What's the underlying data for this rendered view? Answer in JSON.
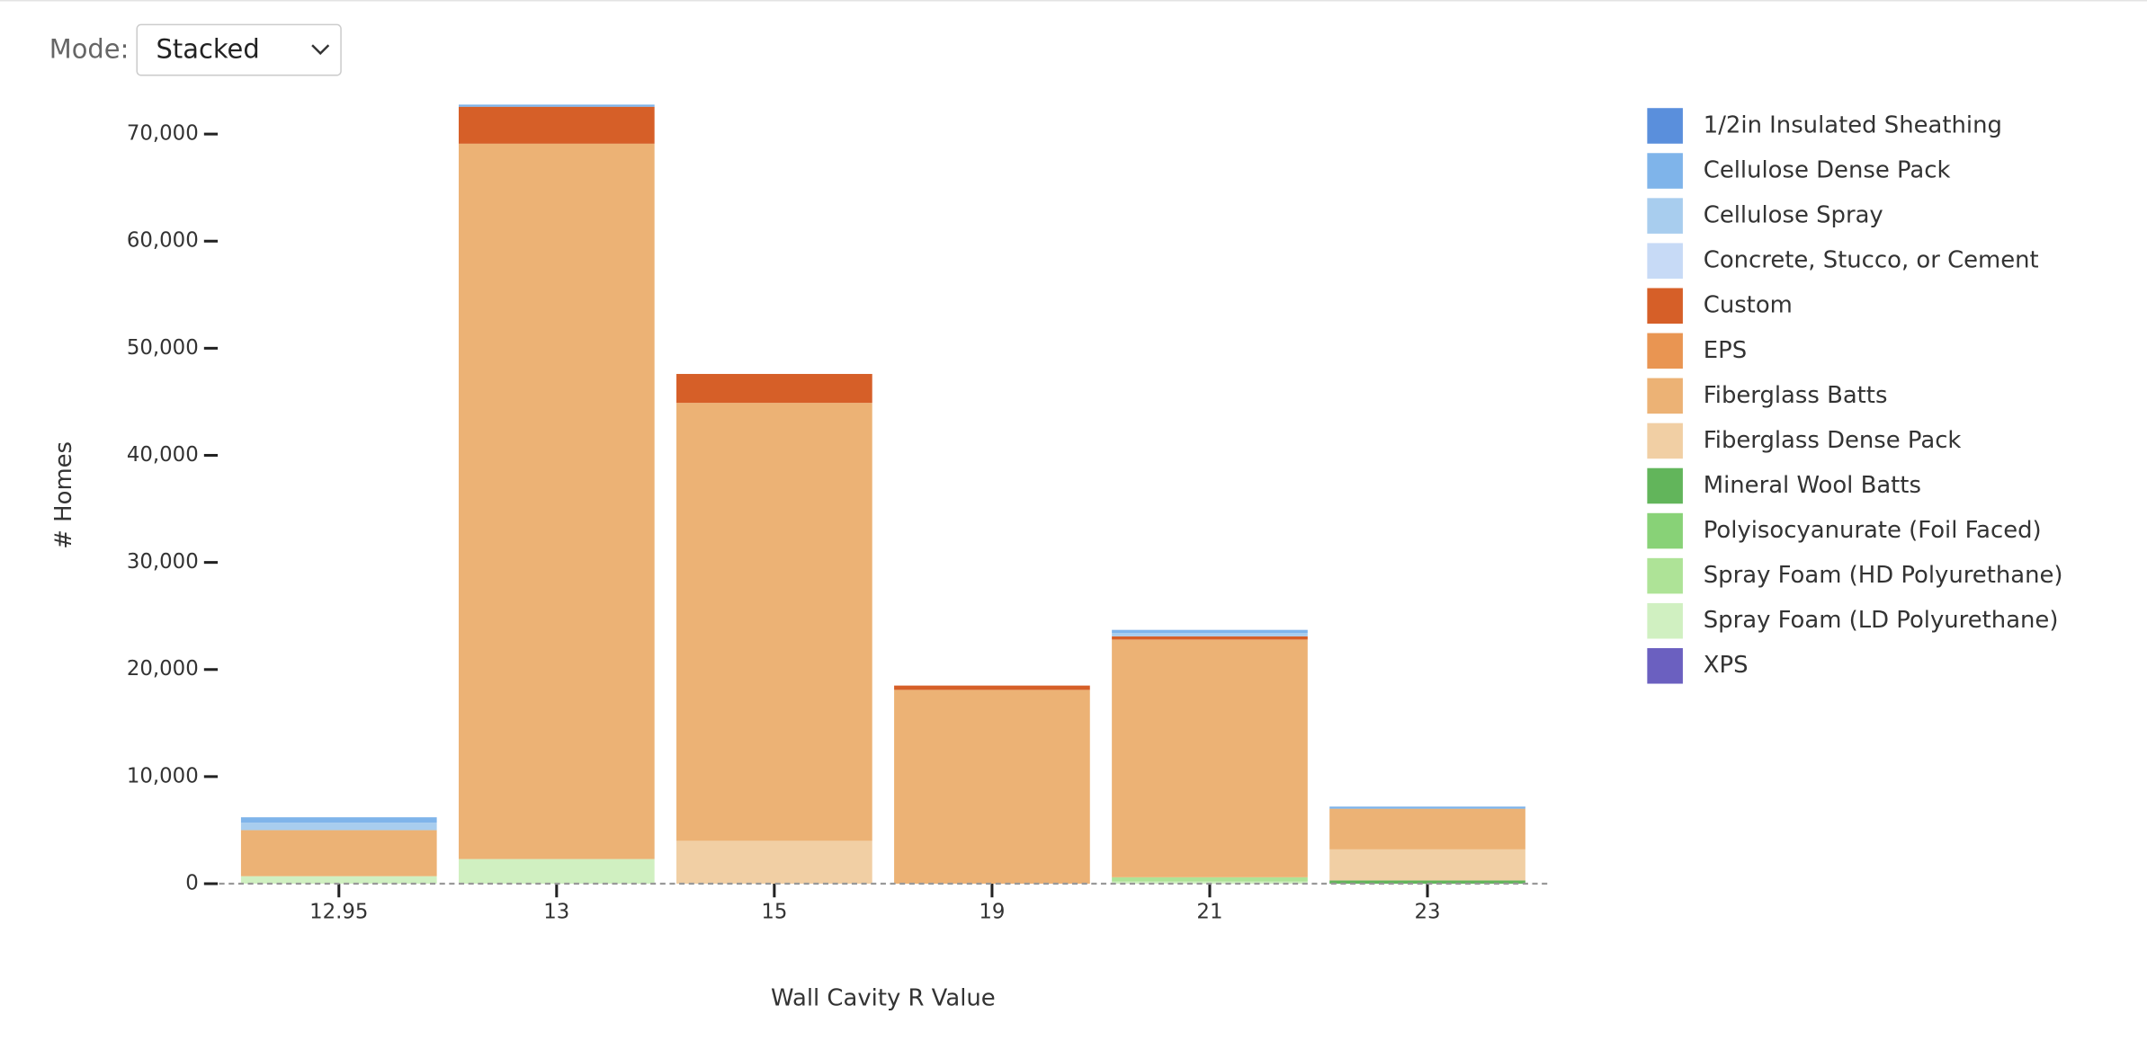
{
  "controls": {
    "mode_label": "Mode:",
    "mode_value": "Stacked"
  },
  "chart_data": {
    "type": "stacked-bar",
    "x_label": "Wall Cavity R Value",
    "y_label": "# Homes",
    "categories": [
      "12.95",
      "13",
      "15",
      "19",
      "21",
      "23"
    ],
    "ylim": [
      0,
      73000
    ],
    "yticks": [
      0,
      {
        "value": 10000,
        "label": "10,000"
      },
      {
        "value": 20000,
        "label": "20,000"
      },
      {
        "value": 30000,
        "label": "30,000"
      },
      {
        "value": 40000,
        "label": "40,000"
      },
      {
        "value": 50000,
        "label": "50,000"
      },
      {
        "value": 60000,
        "label": "60,000"
      },
      {
        "value": 70000,
        "label": "70,000"
      }
    ],
    "legend": "right",
    "series": [
      {
        "name": "1/2in Insulated Sheathing",
        "color": "#5a8fdc",
        "values": [
          0,
          0,
          0,
          0,
          0,
          0
        ]
      },
      {
        "name": "Cellulose Dense Pack",
        "color": "#7fb4ea",
        "values": [
          500,
          200,
          0,
          0,
          300,
          200
        ]
      },
      {
        "name": "Cellulose Spray",
        "color": "#a8cdee",
        "values": [
          700,
          0,
          0,
          0,
          300,
          0
        ]
      },
      {
        "name": "Concrete, Stucco, or Cement",
        "color": "#c7daf6",
        "values": [
          0,
          0,
          0,
          0,
          0,
          0
        ]
      },
      {
        "name": "Custom",
        "color": "#d65f28",
        "values": [
          0,
          3450,
          2700,
          400,
          300,
          0
        ]
      },
      {
        "name": "EPS",
        "color": "#e99552",
        "values": [
          0,
          0,
          0,
          0,
          0,
          0
        ]
      },
      {
        "name": "Fiberglass Batts",
        "color": "#ecb275",
        "values": [
          4300,
          66800,
          40900,
          18100,
          22200,
          3800
        ]
      },
      {
        "name": "Fiberglass Dense Pack",
        "color": "#f1cfa4",
        "values": [
          0,
          0,
          4000,
          0,
          0,
          2900
        ]
      },
      {
        "name": "Mineral Wool Batts",
        "color": "#62b55b",
        "values": [
          0,
          0,
          0,
          0,
          0,
          300
        ]
      },
      {
        "name": "Polyisocyanurate (Foil Faced)",
        "color": "#88d277",
        "values": [
          0,
          0,
          0,
          0,
          0,
          0
        ]
      },
      {
        "name": "Spray Foam (HD Polyurethane)",
        "color": "#aee397",
        "values": [
          0,
          0,
          0,
          0,
          400,
          0
        ]
      },
      {
        "name": "Spray Foam (LD Polyurethane)",
        "color": "#d0f0c1",
        "values": [
          700,
          2300,
          0,
          0,
          200,
          0
        ]
      },
      {
        "name": "XPS",
        "color": "#6b60c0",
        "values": [
          0,
          0,
          0,
          0,
          0,
          0
        ]
      }
    ]
  }
}
